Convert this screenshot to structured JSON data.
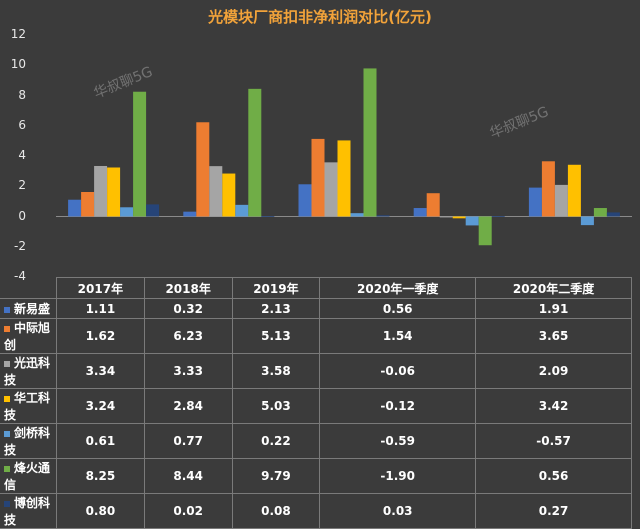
{
  "title": "光模块厂商扣非净利润对比(亿元)",
  "watermark": "华叔聊5G",
  "chart_data": {
    "type": "bar",
    "title": "光模块厂商扣非净利润对比(亿元)",
    "categories": [
      "2017年",
      "2018年",
      "2019年",
      "2020年一季度",
      "2020年二季度"
    ],
    "ylim": [
      -4,
      12
    ],
    "yticks": [
      12,
      10,
      8,
      6,
      4,
      2,
      0,
      -2,
      -4
    ],
    "grid": false,
    "legend": "table-below",
    "series": [
      {
        "name": "新易盛",
        "color": "#4472c4",
        "values": [
          1.11,
          0.32,
          2.13,
          0.56,
          1.91
        ],
        "labels": [
          "1.11",
          "0.32",
          "2.13",
          "0.56",
          "1.91"
        ]
      },
      {
        "name": "中际旭创",
        "color": "#ed7d31",
        "values": [
          1.62,
          6.23,
          5.13,
          1.54,
          3.65
        ],
        "labels": [
          "1.62",
          "6.23",
          "5.13",
          "1.54",
          "3.65"
        ]
      },
      {
        "name": "光迅科技",
        "color": "#a5a5a5",
        "values": [
          3.34,
          3.33,
          3.58,
          -0.06,
          2.09
        ],
        "labels": [
          "3.34",
          "3.33",
          "3.58",
          "-0.06",
          "2.09"
        ]
      },
      {
        "name": "华工科技",
        "color": "#ffc000",
        "values": [
          3.24,
          2.84,
          5.03,
          -0.12,
          3.42
        ],
        "labels": [
          "3.24",
          "2.84",
          "5.03",
          "-0.12",
          "3.42"
        ]
      },
      {
        "name": "剑桥科技",
        "color": "#5b9bd5",
        "values": [
          0.61,
          0.77,
          0.22,
          -0.59,
          -0.57
        ],
        "labels": [
          "0.61",
          "0.77",
          "0.22",
          "-0.59",
          "-0.57"
        ]
      },
      {
        "name": "烽火通信",
        "color": "#70ad47",
        "values": [
          8.25,
          8.44,
          9.79,
          -1.9,
          0.56
        ],
        "labels": [
          "8.25",
          "8.44",
          "9.79",
          "-1.90",
          "0.56"
        ]
      },
      {
        "name": "博创科技",
        "color": "#264478",
        "values": [
          0.8,
          0.02,
          0.08,
          0.03,
          0.27
        ],
        "labels": [
          "0.80",
          "0.02",
          "0.08",
          "0.03",
          "0.27"
        ]
      }
    ]
  }
}
